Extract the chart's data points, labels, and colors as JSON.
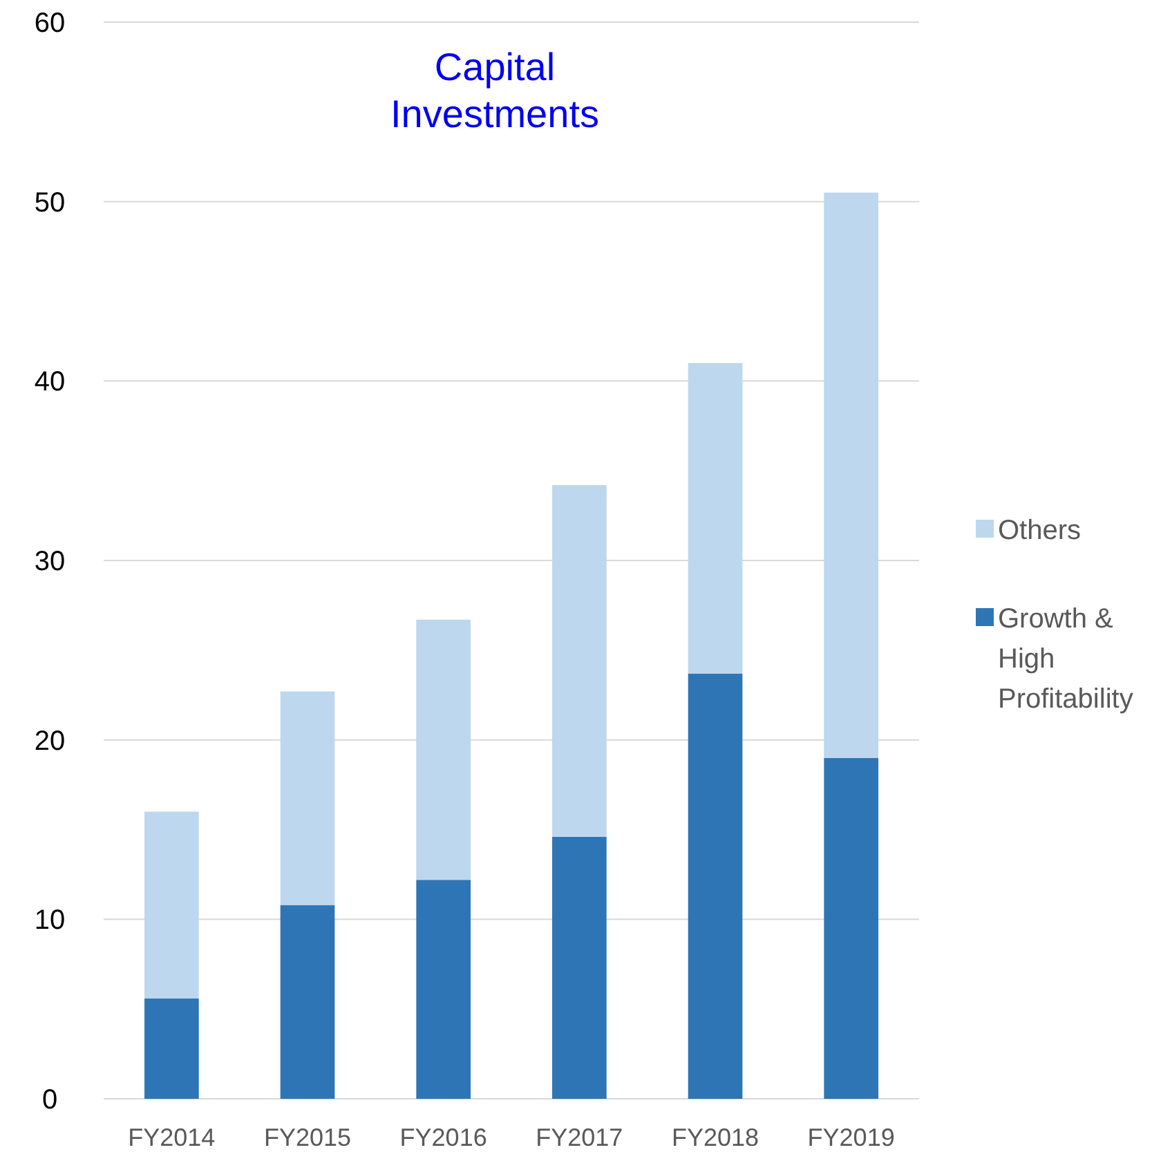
{
  "chart_data": {
    "type": "bar",
    "title": "Capital Investments",
    "categories": [
      "FY2014",
      "FY2015",
      "FY2016",
      "FY2017",
      "FY2018",
      "FY2019"
    ],
    "stacked": true,
    "series": [
      {
        "name": "Growth & High Profitability",
        "color": "#2e75b6",
        "values": [
          5.6,
          10.8,
          12.2,
          14.6,
          23.7,
          19.0
        ]
      },
      {
        "name": "Others",
        "color": "#bdd7ee",
        "values": [
          10.4,
          11.9,
          14.5,
          19.6,
          17.3,
          31.5
        ]
      }
    ],
    "ylim": [
      0,
      60
    ],
    "yticks": [
      0,
      10,
      20,
      30,
      40,
      50,
      60
    ],
    "grid": "y",
    "legend": "right"
  }
}
